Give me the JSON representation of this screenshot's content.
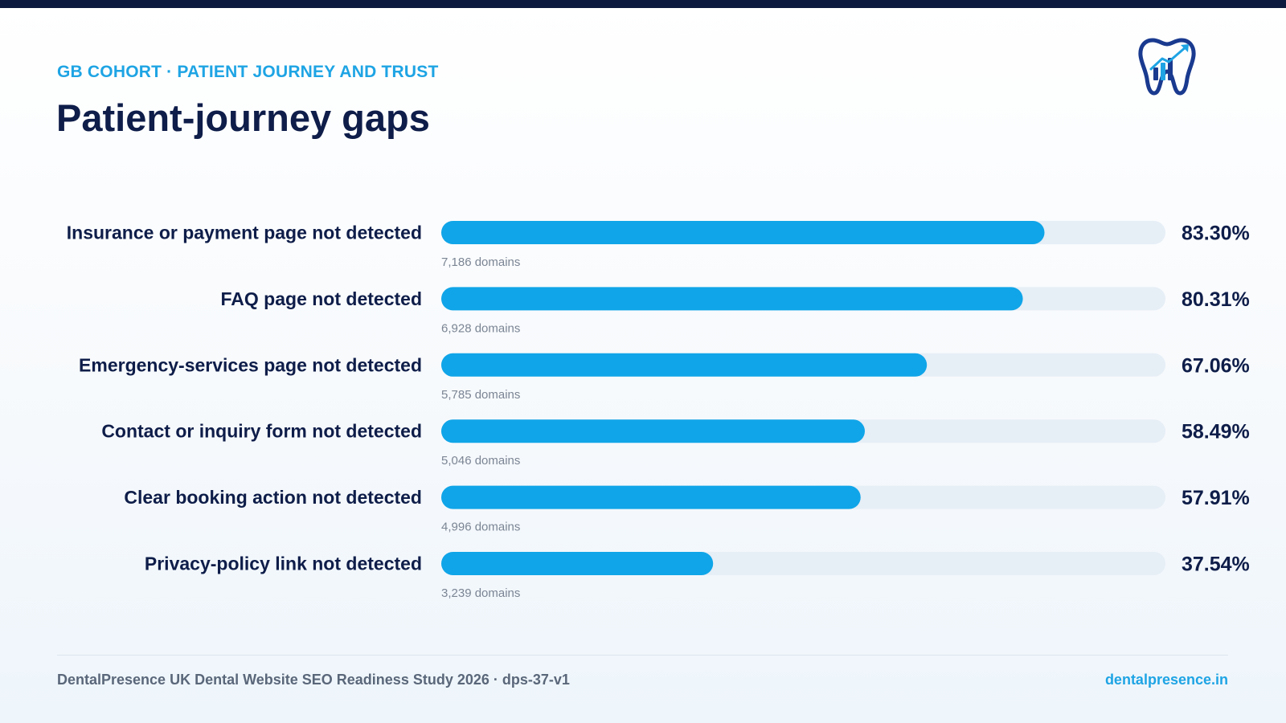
{
  "header": {
    "eyebrow": "GB COHORT · PATIENT JOURNEY AND TRUST",
    "title": "Patient-journey gaps"
  },
  "logo": {
    "icon": "tooth-chart-logo-icon",
    "colors": {
      "primary": "#1a3a8f",
      "accent": "#1ea4e4"
    }
  },
  "colors": {
    "bar": "#10a5e8",
    "track": "#e6eef6",
    "label": "#0e1d49",
    "sublabel": "#7b8594",
    "value": "#0e1d49"
  },
  "chart_data": {
    "type": "bar",
    "orientation": "horizontal",
    "xlim": [
      0,
      100
    ],
    "unit": "%",
    "categories": [
      "Insurance or payment page not detected",
      "FAQ page not detected",
      "Emergency-services page not detected",
      "Contact or inquiry form not detected",
      "Clear booking action not detected",
      "Privacy-policy link not detected"
    ],
    "values": [
      83.3,
      80.31,
      67.06,
      58.49,
      57.91,
      37.54
    ],
    "value_labels": [
      "83.30%",
      "80.31%",
      "67.06%",
      "58.49%",
      "57.91%",
      "37.54%"
    ],
    "sublabels": [
      "7,186 domains",
      "6,928 domains",
      "5,785 domains",
      "5,046 domains",
      "4,996 domains",
      "3,239 domains"
    ],
    "grid": false,
    "legend": "none"
  },
  "footer": {
    "left": "DentalPresence UK Dental Website SEO Readiness Study 2026 · dps-37-v1",
    "right": "dentalpresence.in"
  }
}
